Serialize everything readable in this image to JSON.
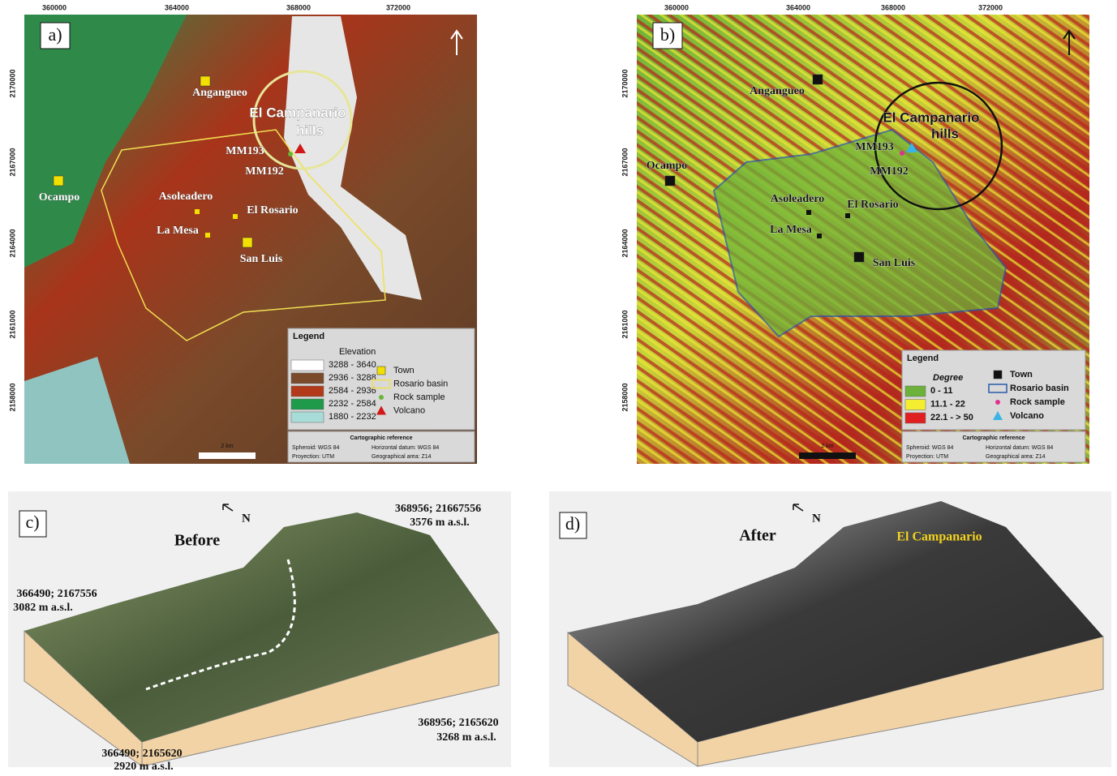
{
  "panels": [
    {
      "label": "a)",
      "x_ticks": [
        "360000",
        "364000",
        "368000",
        "372000"
      ],
      "y_ticks": [
        "2170000",
        "2167000",
        "2164000",
        "2161000",
        "2158000"
      ],
      "places": [
        "Angangueo",
        "Ocampo",
        "Asoleadero",
        "El Rosario",
        "La Mesa",
        "San Luis",
        "El Campanario",
        "hills",
        "MM193",
        "MM192"
      ],
      "legend": {
        "title": "Legend",
        "subtitle": "Elevation",
        "classes": [
          {
            "label": "3288 - 3640",
            "color": "#ffffff"
          },
          {
            "label": "2936 - 3288",
            "color": "#7a4a2a"
          },
          {
            "label": "2584 - 2936",
            "color": "#b23a1a"
          },
          {
            "label": "2232 - 2584",
            "color": "#1e9a4a"
          },
          {
            "label": "1880 - 2232",
            "color": "#a8dcd8"
          }
        ],
        "symbols": [
          "Town",
          "Rosario basin",
          "Rock sample",
          "Volcano"
        ]
      },
      "reference": {
        "title": "Cartographic reference",
        "lines": [
          "Spheroid: WGS 84",
          "Horizontal datum: WGS 84",
          "Proyection: UTM",
          "Geographical area: Z14"
        ]
      },
      "scale": "2 km"
    },
    {
      "label": "b)",
      "x_ticks": [
        "360000",
        "364000",
        "368000",
        "372000"
      ],
      "y_ticks": [
        "2170000",
        "2167000",
        "2164000",
        "2161000",
        "2158000"
      ],
      "places": [
        "Angangueo",
        "Ocampo",
        "Asoleadero",
        "El Rosario",
        "La Mesa",
        "San Luis",
        "El Campanario",
        "hills",
        "MM193",
        "MM192"
      ],
      "legend": {
        "title": "Legend",
        "subtitle": "Degree",
        "classes": [
          {
            "label": "0 - 11",
            "color": "#6cb23a"
          },
          {
            "label": "11.1 -  22",
            "color": "#f5ee30"
          },
          {
            "label": "22.1 - > 50",
            "color": "#e02020"
          }
        ],
        "symbols": [
          "Town",
          "Rosario basin",
          "Rock sample",
          "Volcano"
        ]
      },
      "reference": {
        "title": "Cartographic reference",
        "lines": [
          "Spheroid: WGS 84",
          "Horizontal datum: WGS 84",
          "Proyection: UTM",
          "Geographical area: Z14"
        ]
      },
      "scale": "2 km"
    },
    {
      "label": "c)",
      "title": "Before",
      "north": "N",
      "corners": [
        [
          "368956; 21667556",
          "3576 m a.s.l."
        ],
        [
          "366490; 2167556",
          "3082 m a.s.l."
        ],
        [
          "368956; 2165620",
          "3268 m a.s.l."
        ],
        [
          "366490; 2165620",
          "2920 m a.s.l."
        ]
      ]
    },
    {
      "label": "d)",
      "title": "After",
      "north": "N",
      "place": "El Campanario"
    }
  ]
}
